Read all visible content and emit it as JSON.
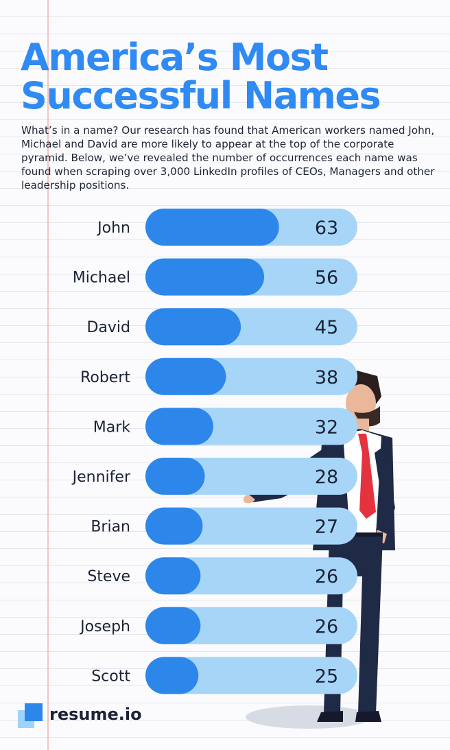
{
  "title": {
    "line1": "America’s Most",
    "line2": "Successful Names"
  },
  "intro": "What’s in a name? Our research has found that American workers named John, Michael and David are more likely to appear at the top of the corporate pyramid. Below, we’ve revealed the number of occurrences each name was found when scraping over 3,000 LinkedIn profiles of CEOs, Managers and other leadership positions.",
  "colors": {
    "title": "#2f8af3",
    "bar_fill": "#2d86ea",
    "bar_track": "#a6d5f8",
    "text": "#1c2335"
  },
  "chart_data": {
    "type": "bar",
    "orientation": "horizontal",
    "title": "",
    "xlabel": "",
    "ylabel": "",
    "categories": [
      "John",
      "Michael",
      "David",
      "Robert",
      "Mark",
      "Jennifer",
      "Brian",
      "Steve",
      "Joseph",
      "Scott"
    ],
    "values": [
      63,
      56,
      45,
      38,
      32,
      28,
      27,
      26,
      26,
      25
    ],
    "xlim": [
      0,
      100
    ],
    "grid": false,
    "legend": "none",
    "data_labels": true
  },
  "brand": {
    "name": "resume.io",
    "icon": "resume-io-logo-icon"
  }
}
